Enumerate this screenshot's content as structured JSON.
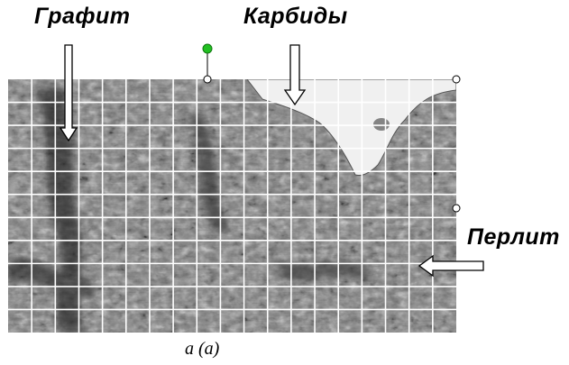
{
  "labels": {
    "graphite": "Графит",
    "carbides": "Карбиды",
    "pearlite": "Перлит"
  },
  "caption": "а (a)",
  "colors": {
    "selection_handle": "#ffffff",
    "rotation_handle": "#22c022",
    "grid_lines": "#ffffff",
    "carbide_phase": "#f2f2f2"
  },
  "grid": {
    "columns": 19,
    "rows": 11
  },
  "icons": [
    "down-arrow-icon",
    "left-arrow-icon",
    "rotation-handle-icon",
    "resize-handle-icon"
  ]
}
